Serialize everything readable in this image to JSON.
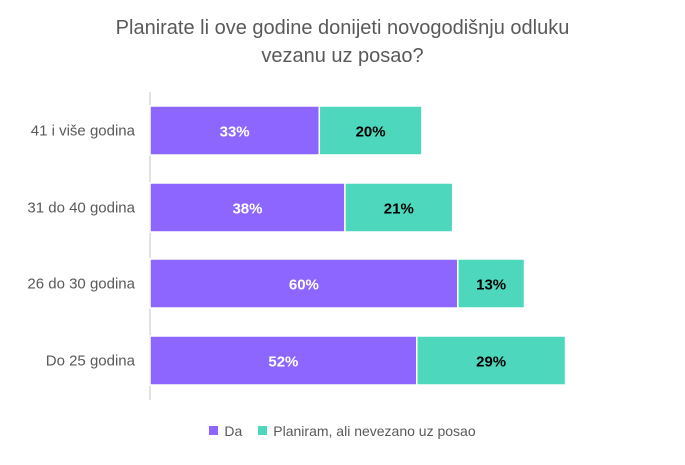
{
  "chart_data": {
    "type": "bar",
    "orientation": "horizontal",
    "stacked": true,
    "title": "Planirate li ove godine donijeti novogodišnju odluku vezanu uz posao?",
    "title_lines": [
      "Planirate li ove godine donijeti novogodišnju odluku",
      "vezanu uz posao?"
    ],
    "categories": [
      "41 i više godina",
      "31 do 40 godina",
      "26 do 30 godina",
      "Do 25 godina"
    ],
    "series": [
      {
        "name": "Da",
        "values": [
          33,
          38,
          60,
          52
        ],
        "color": "#8C66FF",
        "label_color": "#ffffff"
      },
      {
        "name": "Planiram, ali nevezano uz posao",
        "values": [
          20,
          21,
          13,
          29
        ],
        "color": "#4DD8BE",
        "label_color": "#000000"
      }
    ],
    "value_suffix": "%",
    "xlim": [
      0,
      100
    ],
    "grid": false,
    "legend_position": "bottom"
  }
}
